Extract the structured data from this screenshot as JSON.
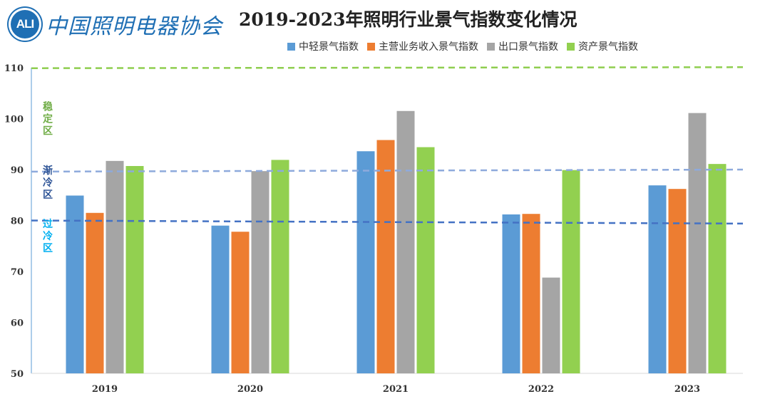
{
  "logo": {
    "badge_text": "ALI",
    "name": "中国照明电器协会"
  },
  "colors": {
    "series": [
      "#5b9bd5",
      "#ed7d31",
      "#a5a5a5",
      "#92d050"
    ],
    "stable_line": "#8fce4f",
    "cooling_line": "#8eaadc",
    "overcold_line": "#4472c4",
    "stable_text": "#70ad47",
    "cooling_text": "#2f5597",
    "overcold_text": "#00b0f0"
  },
  "chart_data": {
    "type": "bar",
    "title": "2019-2023年照明行业景气指数变化情况",
    "categories": [
      "2019",
      "2020",
      "2021",
      "2022",
      "2023"
    ],
    "series": [
      {
        "name": "中轻景气指数",
        "values": [
          84.9,
          79.0,
          93.6,
          81.2,
          86.9
        ]
      },
      {
        "name": "主营业务收入景气指数",
        "values": [
          81.5,
          77.8,
          95.8,
          81.3,
          86.2
        ]
      },
      {
        "name": "出口景气指数",
        "values": [
          91.7,
          89.7,
          101.5,
          68.8,
          101.1
        ]
      },
      {
        "name": "资产景气指数",
        "values": [
          90.7,
          91.9,
          94.4,
          89.9,
          91.1
        ]
      }
    ],
    "ylim": [
      50,
      110
    ],
    "yticks": [
      50,
      60,
      70,
      80,
      90,
      100,
      110
    ],
    "xlabel": "",
    "ylabel": "",
    "reference_lines": [
      {
        "name": "stable-threshold",
        "start": 109.9,
        "end": 110.1,
        "color_key": "stable_line"
      },
      {
        "name": "cooling-threshold",
        "start": 89.6,
        "end": 90.0,
        "color_key": "cooling_line"
      },
      {
        "name": "overcold-threshold",
        "start": 80.0,
        "end": 79.4,
        "color_key": "overcold_line"
      }
    ],
    "zones": [
      {
        "name": "stable",
        "label": [
          "稳",
          "定",
          "区"
        ],
        "y_center": 100.0,
        "color_key": "stable_text"
      },
      {
        "name": "cooling",
        "label": [
          "渐",
          "冷",
          "区"
        ],
        "y_center": 87.5,
        "color_key": "cooling_text"
      },
      {
        "name": "overcold",
        "label": [
          "过",
          "冷",
          "区"
        ],
        "y_center": 77.0,
        "color_key": "overcold_text"
      }
    ]
  }
}
